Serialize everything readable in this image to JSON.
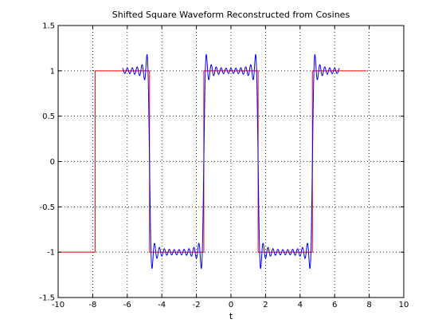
{
  "chart_data": {
    "type": "line",
    "title": "Shifted Square Waveform Reconstructed from Cosines",
    "xlabel": "t",
    "ylabel": "",
    "xlim": [
      -10,
      10
    ],
    "ylim": [
      -1.5,
      1.5
    ],
    "xticks": [
      -10,
      -8,
      -6,
      -4,
      -2,
      0,
      2,
      4,
      6,
      8,
      10
    ],
    "yticks": [
      -1.5,
      -1,
      -0.5,
      0,
      0.5,
      1,
      1.5
    ],
    "grid": true,
    "series": [
      {
        "color": "#ff0000",
        "kind": "square-wave",
        "x": [
          -10,
          -7.854,
          -7.854,
          -4.712,
          -4.712,
          -1.571,
          -1.571,
          1.571,
          1.571,
          4.712,
          4.712,
          7.854
        ],
        "values": [
          -1,
          -1,
          1,
          1,
          -1,
          -1,
          1,
          1,
          -1,
          -1,
          1,
          1
        ]
      },
      {
        "color": "#0000ff",
        "kind": "fourier-cosine-reconstruction",
        "x_range": [
          -6.283,
          6.283
        ],
        "harmonics": 21,
        "overshoot_peak": 1.18,
        "ripple_count_per_plateau": 9
      }
    ]
  }
}
